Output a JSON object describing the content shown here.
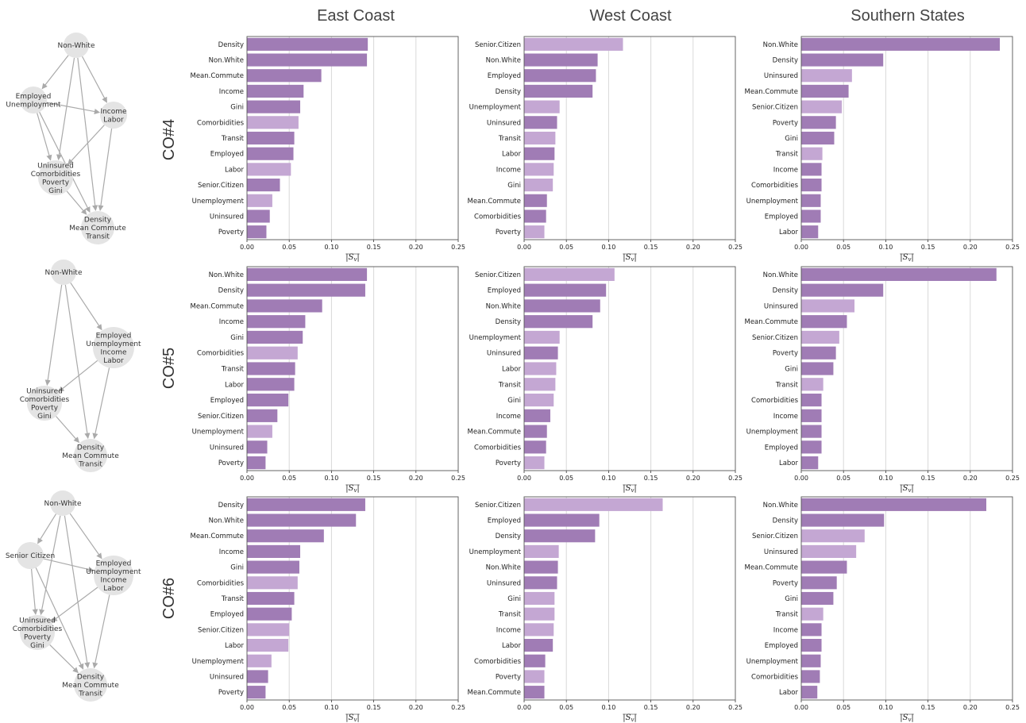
{
  "colors": {
    "dark": "#a07cb5",
    "light": "#c4a7d3",
    "grid": "#d8d8d8",
    "node": "#e4e4e4",
    "edge": "#aaaaaa"
  },
  "column_headers": [
    "East Coast",
    "West Coast",
    "Southern States"
  ],
  "row_labels": [
    "CO#4",
    "CO#5",
    "CO#6"
  ],
  "graphs": [
    {
      "nodes": [
        {
          "id": "a",
          "lines": [
            "Non-White"
          ]
        },
        {
          "id": "b",
          "lines": [
            "Employed",
            "Unemployment"
          ]
        },
        {
          "id": "c",
          "lines": [
            "Income",
            "Labor"
          ]
        },
        {
          "id": "d",
          "lines": [
            "Uninsured",
            "Comorbidities",
            "Poverty",
            "Gini"
          ]
        },
        {
          "id": "e",
          "lines": [
            "Density",
            "Mean Commute",
            "Transit"
          ]
        }
      ],
      "edges": [
        [
          "a",
          "b"
        ],
        [
          "a",
          "c"
        ],
        [
          "a",
          "d"
        ],
        [
          "a",
          "e"
        ],
        [
          "b",
          "c"
        ],
        [
          "b",
          "d"
        ],
        [
          "b",
          "e"
        ],
        [
          "c",
          "d"
        ],
        [
          "c",
          "e"
        ],
        [
          "d",
          "e"
        ]
      ]
    },
    {
      "nodes": [
        {
          "id": "a",
          "lines": [
            "Non-White"
          ]
        },
        {
          "id": "c",
          "lines": [
            "Employed",
            "Unemployment",
            "Income",
            "Labor"
          ]
        },
        {
          "id": "d",
          "lines": [
            "Uninsured",
            "Comorbidities",
            "Poverty",
            "Gini"
          ]
        },
        {
          "id": "e",
          "lines": [
            "Density",
            "Mean Commute",
            "Transit"
          ]
        }
      ],
      "edges": [
        [
          "a",
          "c"
        ],
        [
          "a",
          "d"
        ],
        [
          "a",
          "e"
        ],
        [
          "c",
          "d"
        ],
        [
          "c",
          "e"
        ],
        [
          "d",
          "e"
        ]
      ]
    },
    {
      "nodes": [
        {
          "id": "a",
          "lines": [
            "Non-White"
          ]
        },
        {
          "id": "s",
          "lines": [
            "Senior Citizen"
          ]
        },
        {
          "id": "c",
          "lines": [
            "Employed",
            "Unemployment",
            "Income",
            "Labor"
          ]
        },
        {
          "id": "d",
          "lines": [
            "Uninsured",
            "Comorbidities",
            "Poverty",
            "Gini"
          ]
        },
        {
          "id": "e",
          "lines": [
            "Density",
            "Mean Commute",
            "Transit"
          ]
        }
      ],
      "edges": [
        [
          "a",
          "s"
        ],
        [
          "a",
          "c"
        ],
        [
          "a",
          "d"
        ],
        [
          "a",
          "e"
        ],
        [
          "s",
          "c"
        ],
        [
          "s",
          "d"
        ],
        [
          "s",
          "e"
        ],
        [
          "c",
          "d"
        ],
        [
          "c",
          "e"
        ],
        [
          "d",
          "e"
        ]
      ]
    }
  ],
  "chart_data": [
    {
      "type": "bar",
      "orientation": "horizontal",
      "row": "CO#4",
      "column": "East Coast",
      "xlabel": "|S_v|",
      "xlim": [
        0,
        0.25
      ],
      "xticks": [
        "0.00",
        "0.05",
        "0.10",
        "0.15",
        "0.20",
        "0.25"
      ],
      "categories": [
        "Density",
        "Non.White",
        "Mean.Commute",
        "Income",
        "Gini",
        "Comorbidities",
        "Transit",
        "Employed",
        "Labor",
        "Senior.Citizen",
        "Unemployment",
        "Uninsured",
        "Poverty"
      ],
      "values": [
        0.143,
        0.142,
        0.088,
        0.067,
        0.063,
        0.061,
        0.056,
        0.055,
        0.052,
        0.039,
        0.03,
        0.027,
        0.023
      ],
      "shade": [
        "dark",
        "dark",
        "dark",
        "dark",
        "dark",
        "light",
        "dark",
        "dark",
        "light",
        "dark",
        "light",
        "dark",
        "dark"
      ]
    },
    {
      "type": "bar",
      "orientation": "horizontal",
      "row": "CO#4",
      "column": "West Coast",
      "xlabel": "|S_v|",
      "xlim": [
        0,
        0.25
      ],
      "xticks": [
        "0.00",
        "0.05",
        "0.10",
        "0.15",
        "0.20",
        "0.25"
      ],
      "categories": [
        "Senior.Citizen",
        "Non.White",
        "Employed",
        "Density",
        "Unemployment",
        "Uninsured",
        "Transit",
        "Labor",
        "Income",
        "Gini",
        "Mean.Commute",
        "Comorbidities",
        "Poverty"
      ],
      "values": [
        0.117,
        0.087,
        0.085,
        0.081,
        0.042,
        0.039,
        0.037,
        0.036,
        0.035,
        0.034,
        0.027,
        0.026,
        0.024
      ],
      "shade": [
        "light",
        "dark",
        "dark",
        "dark",
        "light",
        "dark",
        "light",
        "dark",
        "light",
        "light",
        "dark",
        "dark",
        "light"
      ]
    },
    {
      "type": "bar",
      "orientation": "horizontal",
      "row": "CO#4",
      "column": "Southern States",
      "xlabel": "|S_v|",
      "xlim": [
        0,
        0.25
      ],
      "xticks": [
        "0.00",
        "0.05",
        "0.10",
        "0.15",
        "0.20",
        "0.25"
      ],
      "categories": [
        "Non.White",
        "Density",
        "Uninsured",
        "Mean.Commute",
        "Senior.Citizen",
        "Poverty",
        "Gini",
        "Transit",
        "Income",
        "Comorbidities",
        "Unemployment",
        "Employed",
        "Labor"
      ],
      "values": [
        0.235,
        0.097,
        0.06,
        0.056,
        0.048,
        0.041,
        0.039,
        0.025,
        0.024,
        0.024,
        0.023,
        0.023,
        0.02
      ],
      "shade": [
        "dark",
        "dark",
        "light",
        "dark",
        "light",
        "dark",
        "dark",
        "light",
        "dark",
        "dark",
        "dark",
        "dark",
        "dark"
      ]
    },
    {
      "type": "bar",
      "orientation": "horizontal",
      "row": "CO#5",
      "column": "East Coast",
      "xlabel": "|S_v|",
      "xlim": [
        0,
        0.25
      ],
      "xticks": [
        "0.00",
        "0.05",
        "0.10",
        "0.15",
        "0.20",
        "0.25"
      ],
      "categories": [
        "Non.White",
        "Density",
        "Mean.Commute",
        "Income",
        "Gini",
        "Comorbidities",
        "Transit",
        "Labor",
        "Employed",
        "Senior.Citizen",
        "Unemployment",
        "Uninsured",
        "Poverty"
      ],
      "values": [
        0.142,
        0.14,
        0.089,
        0.069,
        0.066,
        0.06,
        0.057,
        0.056,
        0.049,
        0.036,
        0.03,
        0.024,
        0.022
      ],
      "shade": [
        "dark",
        "dark",
        "dark",
        "dark",
        "dark",
        "light",
        "dark",
        "dark",
        "dark",
        "dark",
        "light",
        "dark",
        "dark"
      ]
    },
    {
      "type": "bar",
      "orientation": "horizontal",
      "row": "CO#5",
      "column": "West Coast",
      "xlabel": "|S_v|",
      "xlim": [
        0,
        0.25
      ],
      "xticks": [
        "0.00",
        "0.05",
        "0.10",
        "0.15",
        "0.20",
        "0.25"
      ],
      "categories": [
        "Senior.Citizen",
        "Employed",
        "Non.White",
        "Density",
        "Unemployment",
        "Uninsured",
        "Labor",
        "Transit",
        "Gini",
        "Income",
        "Mean.Commute",
        "Comorbidities",
        "Poverty"
      ],
      "values": [
        0.107,
        0.097,
        0.09,
        0.081,
        0.042,
        0.04,
        0.038,
        0.037,
        0.035,
        0.031,
        0.027,
        0.026,
        0.024
      ],
      "shade": [
        "light",
        "dark",
        "dark",
        "dark",
        "light",
        "dark",
        "light",
        "light",
        "light",
        "dark",
        "dark",
        "dark",
        "light"
      ]
    },
    {
      "type": "bar",
      "orientation": "horizontal",
      "row": "CO#5",
      "column": "Southern States",
      "xlabel": "|S_v|",
      "xlim": [
        0,
        0.25
      ],
      "xticks": [
        "0.00",
        "0.05",
        "0.10",
        "0.15",
        "0.20",
        "0.25"
      ],
      "categories": [
        "Non.White",
        "Density",
        "Uninsured",
        "Mean.Commute",
        "Senior.Citizen",
        "Poverty",
        "Gini",
        "Transit",
        "Comorbidities",
        "Income",
        "Unemployment",
        "Employed",
        "Labor"
      ],
      "values": [
        0.231,
        0.097,
        0.063,
        0.054,
        0.045,
        0.041,
        0.038,
        0.026,
        0.024,
        0.024,
        0.024,
        0.024,
        0.02
      ],
      "shade": [
        "dark",
        "dark",
        "light",
        "dark",
        "light",
        "dark",
        "dark",
        "light",
        "dark",
        "dark",
        "dark",
        "dark",
        "dark"
      ]
    },
    {
      "type": "bar",
      "orientation": "horizontal",
      "row": "CO#6",
      "column": "East Coast",
      "xlabel": "|S_v|",
      "xlim": [
        0,
        0.25
      ],
      "xticks": [
        "0.00",
        "0.05",
        "0.10",
        "0.15",
        "0.20",
        "0.25"
      ],
      "categories": [
        "Density",
        "Non.White",
        "Mean.Commute",
        "Income",
        "Gini",
        "Comorbidities",
        "Transit",
        "Employed",
        "Senior.Citizen",
        "Labor",
        "Unemployment",
        "Uninsured",
        "Poverty"
      ],
      "values": [
        0.14,
        0.129,
        0.091,
        0.063,
        0.062,
        0.06,
        0.056,
        0.053,
        0.05,
        0.049,
        0.029,
        0.025,
        0.022
      ],
      "shade": [
        "dark",
        "dark",
        "dark",
        "dark",
        "dark",
        "light",
        "dark",
        "dark",
        "light",
        "light",
        "light",
        "dark",
        "dark"
      ]
    },
    {
      "type": "bar",
      "orientation": "horizontal",
      "row": "CO#6",
      "column": "West Coast",
      "xlabel": "|S_v|",
      "xlim": [
        0,
        0.25
      ],
      "xticks": [
        "0.00",
        "0.05",
        "0.10",
        "0.15",
        "0.20",
        "0.25"
      ],
      "categories": [
        "Senior.Citizen",
        "Employed",
        "Density",
        "Unemployment",
        "Non.White",
        "Uninsured",
        "Gini",
        "Transit",
        "Income",
        "Labor",
        "Comorbidities",
        "Poverty",
        "Mean.Commute"
      ],
      "values": [
        0.164,
        0.089,
        0.084,
        0.041,
        0.04,
        0.039,
        0.036,
        0.036,
        0.035,
        0.034,
        0.025,
        0.024,
        0.024
      ],
      "shade": [
        "light",
        "dark",
        "dark",
        "light",
        "dark",
        "dark",
        "light",
        "light",
        "light",
        "dark",
        "dark",
        "light",
        "dark"
      ]
    },
    {
      "type": "bar",
      "orientation": "horizontal",
      "row": "CO#6",
      "column": "Southern States",
      "xlabel": "|S_v|",
      "xlim": [
        0,
        0.25
      ],
      "xticks": [
        "0.00",
        "0.05",
        "0.10",
        "0.15",
        "0.20",
        "0.25"
      ],
      "categories": [
        "Non.White",
        "Density",
        "Senior.Citizen",
        "Uninsured",
        "Mean.Commute",
        "Poverty",
        "Gini",
        "Transit",
        "Income",
        "Employed",
        "Unemployment",
        "Comorbidities",
        "Labor"
      ],
      "values": [
        0.219,
        0.098,
        0.075,
        0.065,
        0.054,
        0.042,
        0.038,
        0.026,
        0.024,
        0.024,
        0.023,
        0.022,
        0.019
      ],
      "shade": [
        "dark",
        "dark",
        "light",
        "light",
        "dark",
        "dark",
        "dark",
        "light",
        "dark",
        "dark",
        "dark",
        "dark",
        "dark"
      ]
    }
  ]
}
